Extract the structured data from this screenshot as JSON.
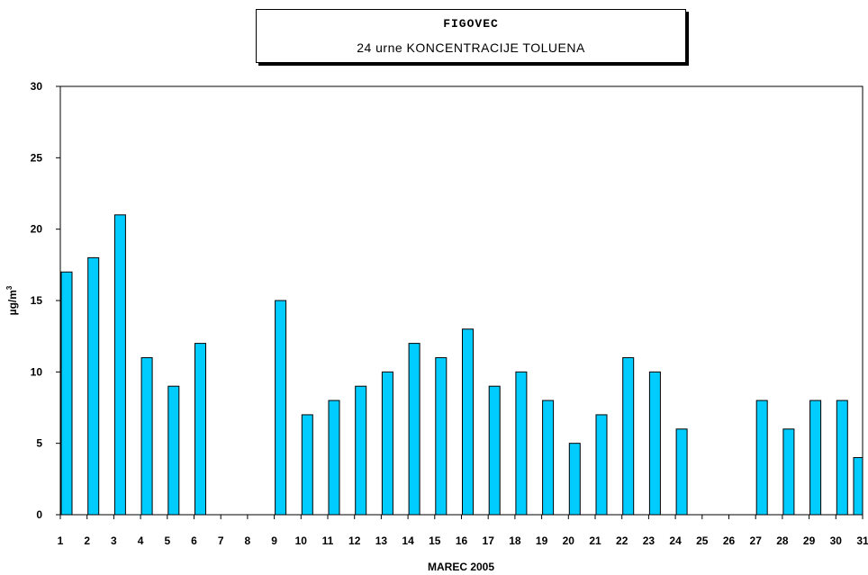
{
  "title": {
    "line1": "FIGOVEC",
    "line2": "24 urne KONCENTRACIJE TOLUENA"
  },
  "colors": {
    "bar": "#00ccff",
    "bar_stroke": "#000000",
    "axis": "#000000"
  },
  "chart_data": {
    "type": "bar",
    "title": "FIGOVEC — 24 urne KONCENTRACIJE TOLUENA",
    "xlabel": "MAREC 2005",
    "ylabel": "µg/m³",
    "ylim": [
      0,
      30
    ],
    "yticks": [
      0,
      5,
      10,
      15,
      20,
      25,
      30
    ],
    "grid": false,
    "categories": [
      "1",
      "2",
      "3",
      "4",
      "5",
      "6",
      "7",
      "8",
      "9",
      "10",
      "11",
      "12",
      "13",
      "14",
      "15",
      "16",
      "17",
      "18",
      "19",
      "20",
      "21",
      "22",
      "23",
      "24",
      "25",
      "26",
      "27",
      "28",
      "29",
      "30",
      "31"
    ],
    "values": [
      17,
      18,
      21,
      11,
      9,
      12,
      null,
      null,
      15,
      7,
      8,
      9,
      10,
      12,
      11,
      13,
      9,
      10,
      8,
      5,
      7,
      11,
      10,
      6,
      null,
      null,
      8,
      6,
      8,
      8,
      4
    ]
  }
}
